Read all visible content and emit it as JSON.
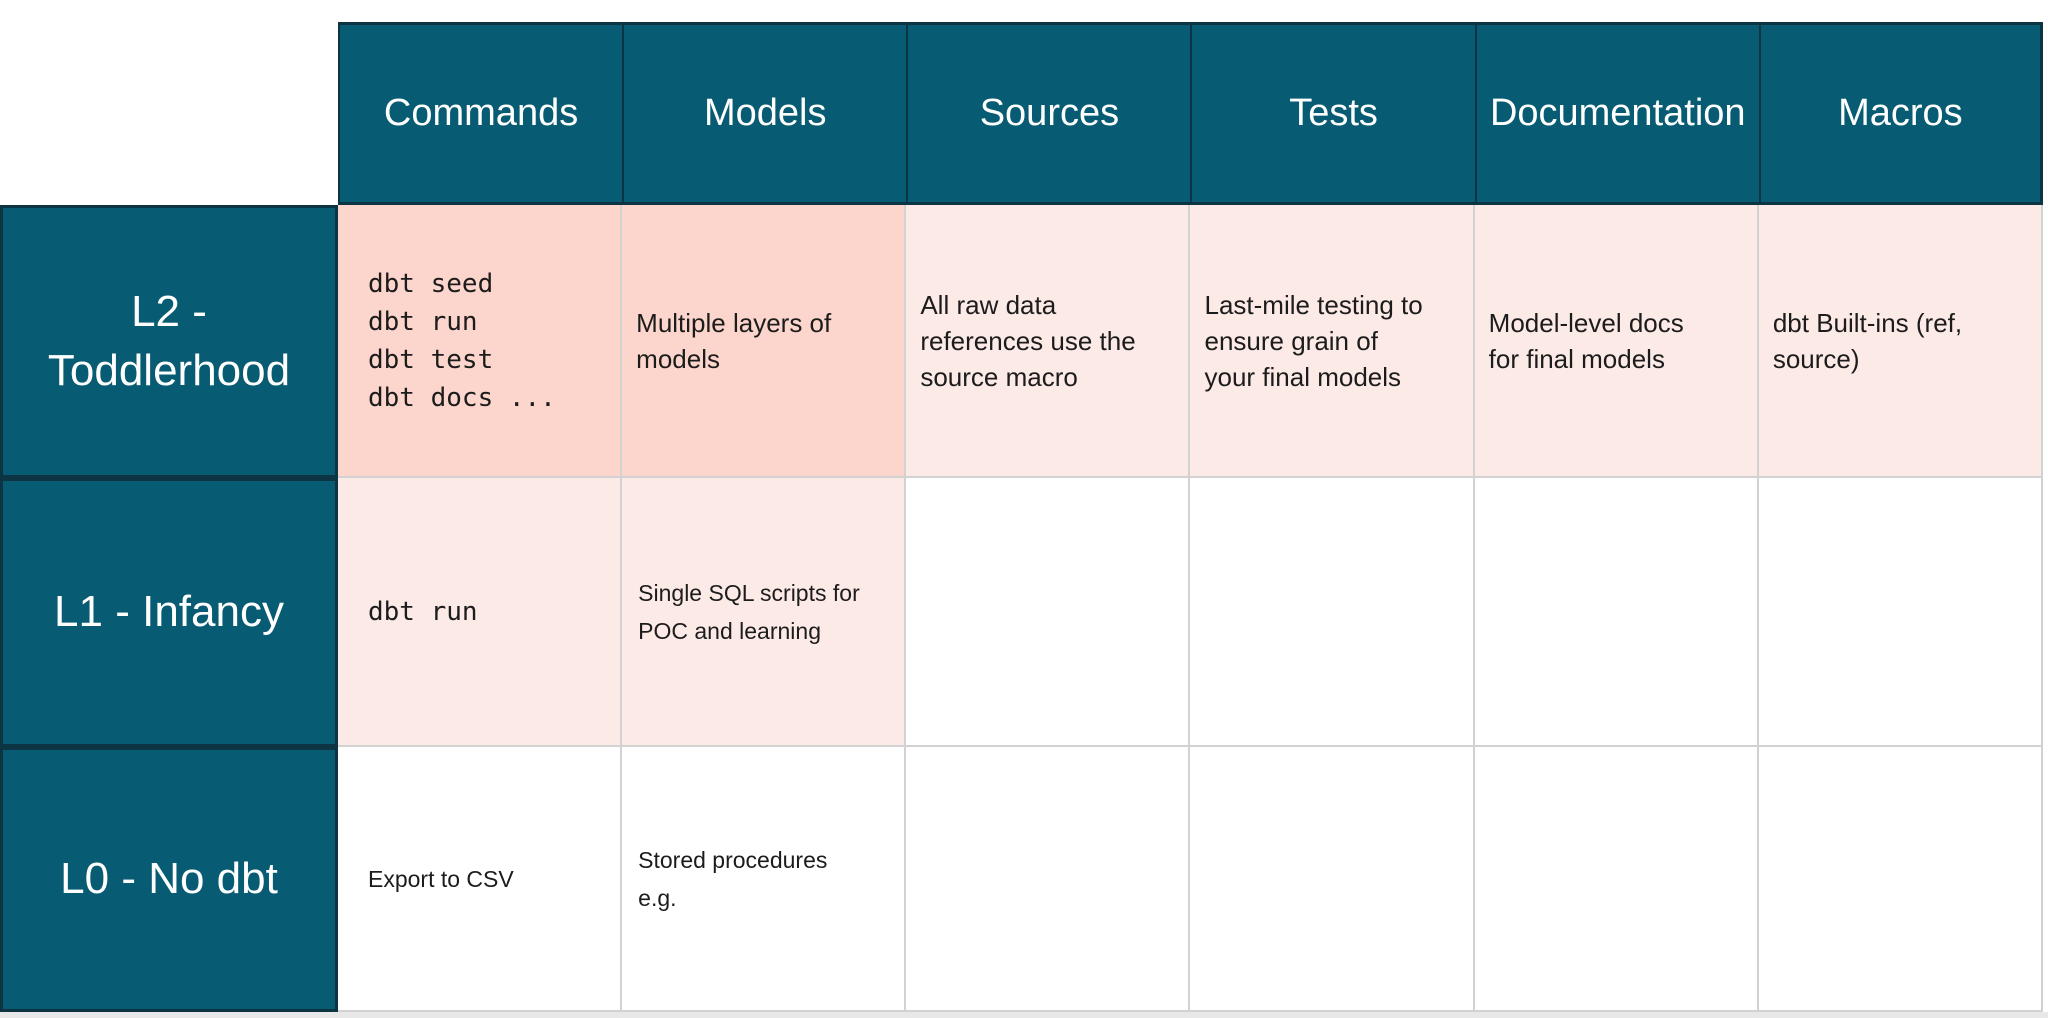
{
  "colors": {
    "header_teal": "#075B72",
    "teal_border": "#0D3442",
    "cell_strong_pink": "#FCD5CC",
    "cell_soft_pink": "#FCEAE6",
    "grid_line": "#D2D2D2",
    "bottom_strip": "#E8E8E8",
    "header_text": "#FFFFFF",
    "cell_text": "#1C1C1C"
  },
  "table": {
    "column_headers": [
      "Commands",
      "Models",
      "Sources",
      "Tests",
      "Documentation",
      "Macros"
    ],
    "rows": [
      {
        "label": "L2 -\nToddlerhood",
        "cells": [
          {
            "text": "dbt seed\ndbt run\ndbt test\ndbt docs ...",
            "style": "mono",
            "tone": "strong"
          },
          {
            "text": "Multiple layers of\nmodels",
            "style": "text-large",
            "tone": "strong"
          },
          {
            "text": "All raw data\nreferences use the\nsource macro",
            "style": "text-large",
            "tone": "soft"
          },
          {
            "text": "Last-mile testing to\nensure grain of\nyour final models",
            "style": "text-large",
            "tone": "soft"
          },
          {
            "text": "Model-level docs\nfor final models",
            "style": "text-large",
            "tone": "soft"
          },
          {
            "text": "dbt Built-ins (ref,\nsource)",
            "style": "text-large",
            "tone": "soft"
          }
        ]
      },
      {
        "label": "L1 - Infancy",
        "cells": [
          {
            "text": "dbt run",
            "style": "mono",
            "tone": "soft"
          },
          {
            "text": "Single SQL scripts for\nPOC and learning",
            "style": "text-small",
            "tone": "soft"
          },
          {
            "text": "",
            "tone": "none"
          },
          {
            "text": "",
            "tone": "none"
          },
          {
            "text": "",
            "tone": "none"
          },
          {
            "text": "",
            "tone": "none"
          }
        ]
      },
      {
        "label": "L0 - No dbt",
        "cells": [
          {
            "text": "Export to CSV",
            "style": "text-small",
            "tone": "none"
          },
          {
            "text": "Stored procedures\ne.g.",
            "style": "text-small",
            "tone": "none"
          },
          {
            "text": "",
            "tone": "none"
          },
          {
            "text": "",
            "tone": "none"
          },
          {
            "text": "",
            "tone": "none"
          },
          {
            "text": "",
            "tone": "none"
          }
        ]
      }
    ]
  }
}
